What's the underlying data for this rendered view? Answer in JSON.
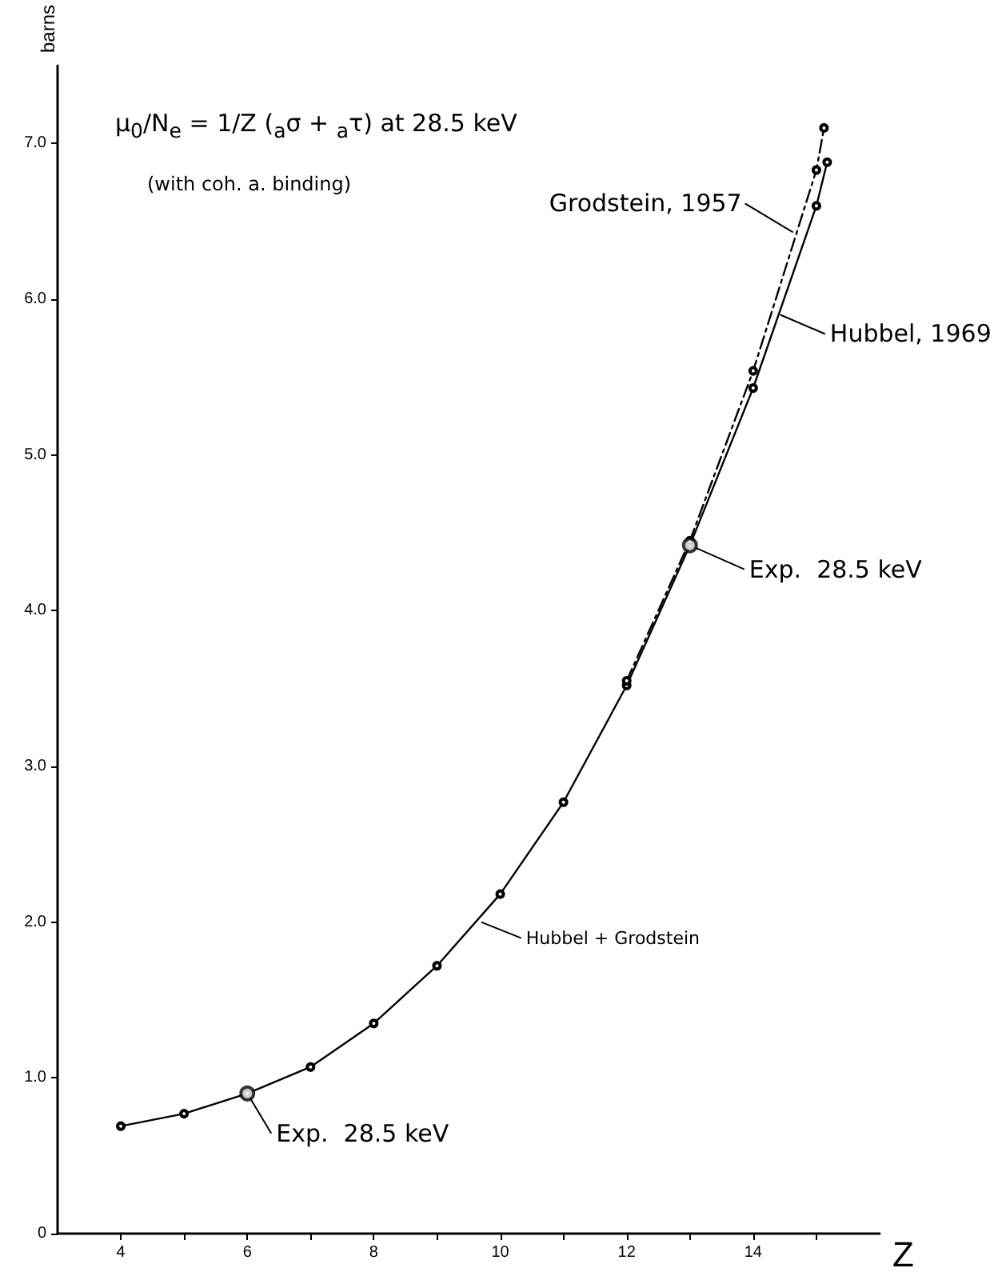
{
  "chart_data": {
    "type": "line",
    "xlabel": "Z",
    "ylabel": "barns",
    "xlim": [
      3,
      16
    ],
    "xticks": [
      4,
      {
        "value": 5,
        "label": null
      },
      6,
      {
        "value": 7,
        "label": null
      },
      8,
      {
        "value": 9,
        "label": null
      },
      10,
      {
        "value": 11,
        "label": null
      },
      12,
      {
        "value": 13,
        "label": null
      },
      14,
      {
        "value": 15,
        "label": null
      }
    ],
    "ylim": [
      0,
      7.5
    ],
    "yticks": [
      0,
      {
        "value": 1,
        "label": "1.0"
      },
      {
        "value": 2,
        "label": "2.0"
      },
      {
        "value": 3,
        "label": "3.0"
      },
      {
        "value": 4,
        "label": "4.0"
      },
      {
        "value": 5,
        "label": "5.0"
      },
      {
        "value": 6,
        "label": "6.0"
      },
      {
        "value": 7,
        "label": "7.0"
      }
    ],
    "grid": false,
    "series": [
      {
        "color": "#000000",
        "marker": "circle",
        "line_style": "solid",
        "x": [
          4,
          5,
          6,
          7,
          8,
          9,
          10,
          11,
          12,
          13,
          14,
          15,
          15.17
        ],
        "values": [
          0.69,
          0.77,
          0.9,
          1.07,
          1.35,
          1.72,
          2.18,
          2.77,
          3.52,
          4.42,
          5.43,
          6.6,
          6.88
        ]
      },
      {
        "color": "#000000",
        "marker": "circle",
        "line_style": "dashed",
        "x": [
          12,
          13,
          14,
          15,
          15.12
        ],
        "values": [
          3.55,
          4.45,
          5.54,
          6.83,
          7.1
        ]
      },
      {
        "type": "scatter",
        "color": "#000000",
        "marker": "circle",
        "x": [
          6,
          13
        ],
        "values": [
          0.9,
          4.42
        ]
      }
    ],
    "annotations": [
      "μ$_{0}$/N$_{e}$ = 1/Z ($_{a}$σ + $_{a}$τ)  at 28.5 keV",
      "(with coh. a. binding)",
      {
        "text": "Grodstein, 1957",
        "x": 14.63,
        "y": 6.43
      },
      {
        "text": "Hubbel, 1969",
        "x": 14.43,
        "y": 5.9
      },
      {
        "text": "Exp.  28.5 keV",
        "x": 13,
        "y": 4.42
      },
      {
        "text": "Hubbel + Grodstein",
        "x": 9.7,
        "y": 2.0
      },
      {
        "text": "Exp.  28.5 keV",
        "x": 6,
        "y": 0.9
      }
    ]
  }
}
